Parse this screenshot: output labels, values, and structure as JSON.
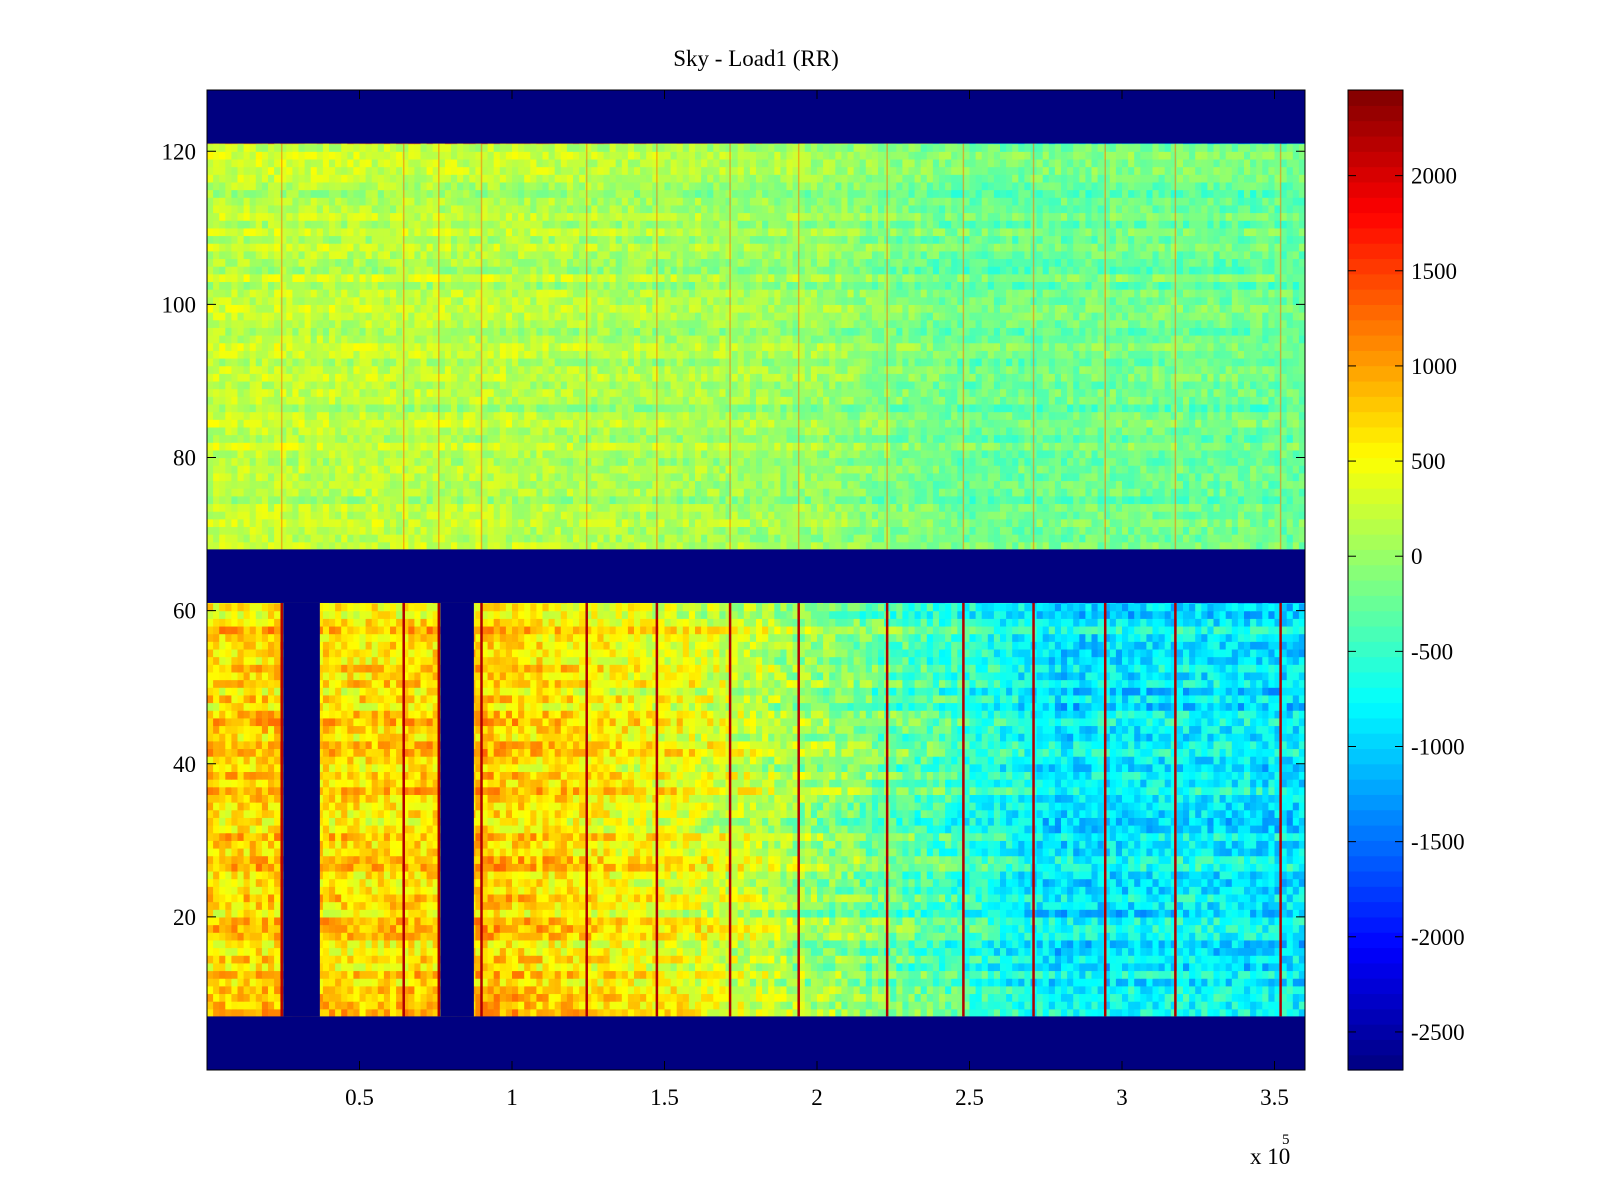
{
  "chart_data": {
    "type": "heatmap",
    "title": "Sky - Load1 (RR)",
    "xlabel": "",
    "ylabel": "",
    "x_exponent_label": "x 10",
    "x_exponent_power": "5",
    "xlim": [
      0,
      360000
    ],
    "ylim": [
      0,
      128
    ],
    "x_ticks": [
      {
        "value": 50000,
        "label": "0.5"
      },
      {
        "value": 100000,
        "label": "1"
      },
      {
        "value": 150000,
        "label": "1.5"
      },
      {
        "value": 200000,
        "label": "2"
      },
      {
        "value": 250000,
        "label": "2.5"
      },
      {
        "value": 300000,
        "label": "3"
      },
      {
        "value": 350000,
        "label": "3.5"
      }
    ],
    "y_ticks": [
      {
        "value": 20,
        "label": "20"
      },
      {
        "value": 40,
        "label": "40"
      },
      {
        "value": 60,
        "label": "60"
      },
      {
        "value": 80,
        "label": "80"
      },
      {
        "value": 100,
        "label": "100"
      },
      {
        "value": 120,
        "label": "120"
      }
    ],
    "colorbar": {
      "colormap": "jet",
      "clim": [
        -2700,
        2450
      ],
      "ticks": [
        {
          "value": 2000,
          "label": "2000"
        },
        {
          "value": 1500,
          "label": "1500"
        },
        {
          "value": 1000,
          "label": "1000"
        },
        {
          "value": 500,
          "label": "500"
        },
        {
          "value": 0,
          "label": "0"
        },
        {
          "value": -500,
          "label": "-500"
        },
        {
          "value": -1000,
          "label": "-1000"
        },
        {
          "value": -1500,
          "label": "-1500"
        },
        {
          "value": -2000,
          "label": "-2000"
        },
        {
          "value": -2500,
          "label": "-2500"
        }
      ]
    },
    "masked_y_bands": [
      [
        0,
        7
      ],
      [
        61,
        68
      ],
      [
        121,
        128
      ]
    ],
    "masked_x_bands": [
      {
        "x0": 25000,
        "x1": 37000,
        "y0": 7,
        "y1": 61
      },
      {
        "x0": 76500,
        "x1": 87500,
        "y0": 7,
        "y1": 61
      }
    ],
    "lower_band_profile": [
      {
        "x": 0,
        "value": 700
      },
      {
        "x": 25000,
        "value": 750
      },
      {
        "x": 50000,
        "value": 650
      },
      {
        "x": 90000,
        "value": 800
      },
      {
        "x": 125000,
        "value": 600
      },
      {
        "x": 160000,
        "value": 400
      },
      {
        "x": 200000,
        "value": 0
      },
      {
        "x": 240000,
        "value": -400
      },
      {
        "x": 280000,
        "value": -900
      },
      {
        "x": 320000,
        "value": -800
      },
      {
        "x": 360000,
        "value": -900
      }
    ],
    "upper_band_profile": [
      {
        "x": 0,
        "value": 200
      },
      {
        "x": 100000,
        "value": 150
      },
      {
        "x": 200000,
        "value": 0
      },
      {
        "x": 250000,
        "value": -250
      },
      {
        "x": 300000,
        "value": -200
      },
      {
        "x": 360000,
        "value": -250
      }
    ],
    "vertical_streaks_x": [
      24500,
      64500,
      76000,
      90000,
      124500,
      147500,
      171500,
      194000,
      223000,
      248000,
      271000,
      294500,
      317500,
      352000
    ]
  }
}
